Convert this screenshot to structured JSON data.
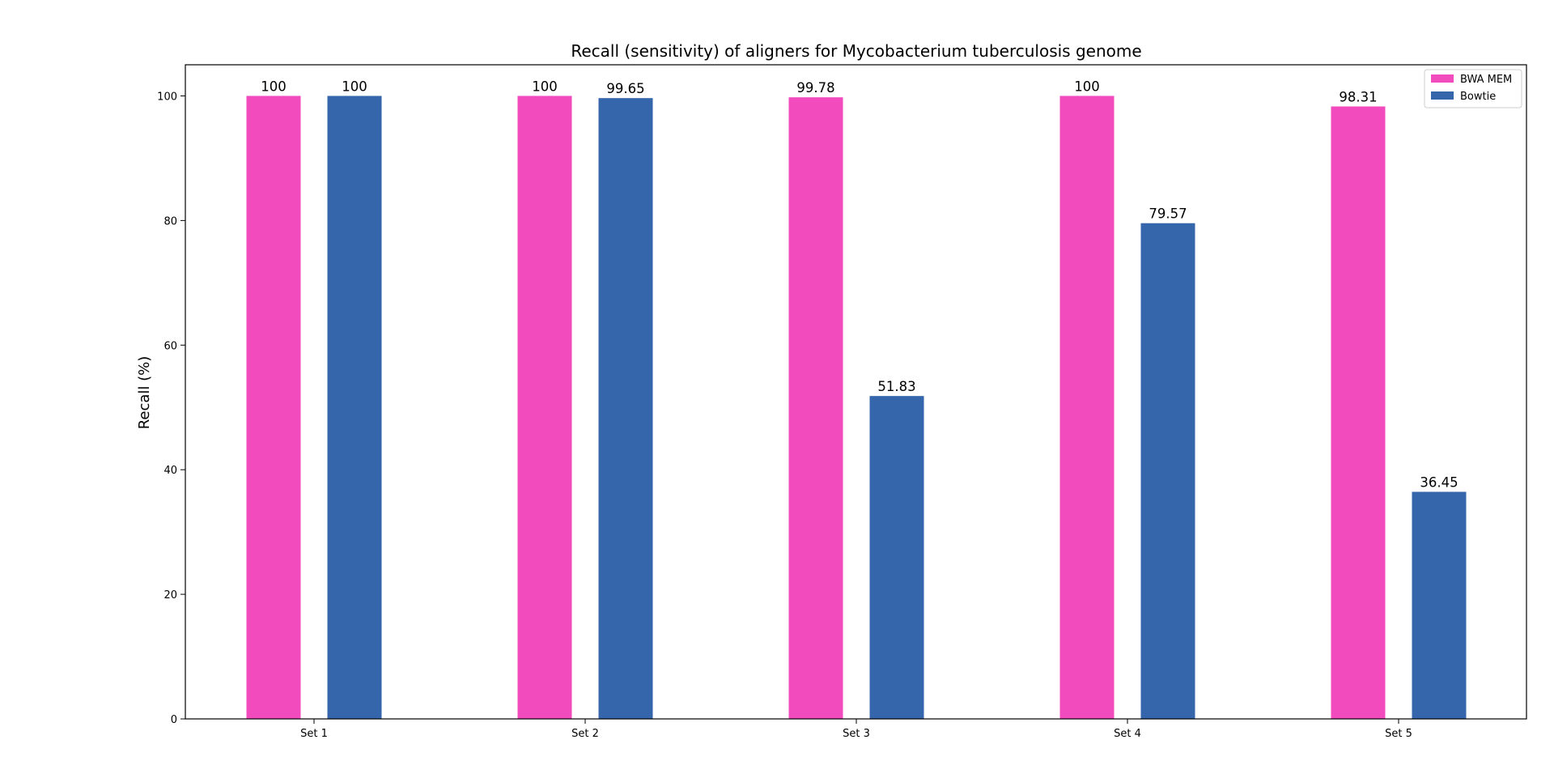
{
  "chart_data": {
    "type": "bar",
    "title": "Recall (sensitivity) of aligners for Mycobacterium tuberculosis genome",
    "xlabel": "",
    "ylabel": "Recall (%)",
    "categories": [
      "Set 1",
      "Set 2",
      "Set 3",
      "Set 4",
      "Set 5"
    ],
    "series": [
      {
        "name": "BWA MEM",
        "color": "#f24bbe",
        "values": [
          100,
          100,
          99.78,
          100,
          98.31
        ],
        "labels": [
          "100",
          "100",
          "99.78",
          "100",
          "98.31"
        ]
      },
      {
        "name": "Bowtie",
        "color": "#3566ab",
        "values": [
          100,
          99.65,
          51.83,
          79.57,
          36.45
        ],
        "labels": [
          "100",
          "99.65",
          "51.83",
          "79.57",
          "36.45"
        ]
      }
    ],
    "ylim": [
      0,
      105
    ],
    "yticks": [
      0,
      20,
      40,
      60,
      80,
      100
    ],
    "grid": false,
    "legend_position": "top-right"
  }
}
